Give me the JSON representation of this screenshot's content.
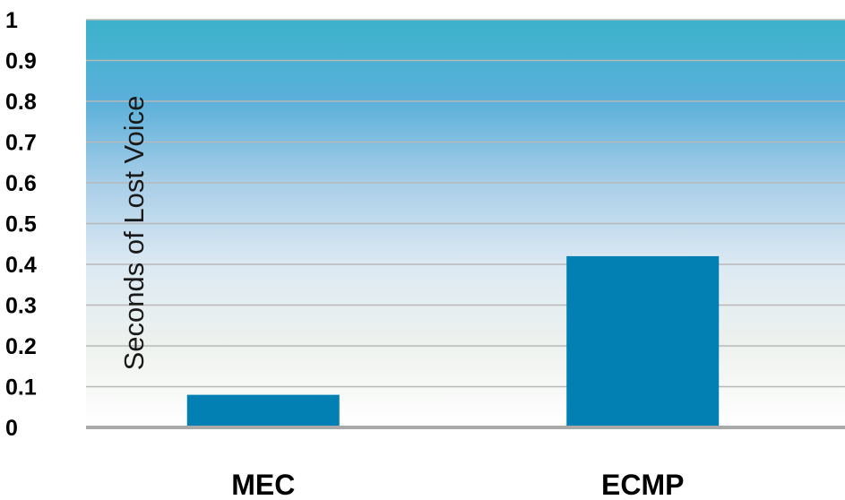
{
  "chart_data": {
    "type": "bar",
    "categories": [
      "MEC",
      "ECMP"
    ],
    "values": [
      0.08,
      0.42
    ],
    "title": "",
    "xlabel": "",
    "ylabel": "Seconds of Lost Voice",
    "ylim": [
      0,
      1
    ],
    "yticks": [
      0,
      0.1,
      0.2,
      0.3,
      0.4,
      0.5,
      0.6,
      0.7,
      0.8,
      0.9,
      1
    ],
    "ytick_labels": [
      "0",
      "0.1",
      "0.2",
      "0.3",
      "0.4",
      "0.5",
      "0.6",
      "0.7",
      "0.8",
      "0.9",
      "1"
    ],
    "grid": true,
    "legend": "none",
    "bar_color": "#0280b4",
    "background_gradient": [
      "#3bb2cc",
      "#5bb0da",
      "#a8cee8",
      "#dce9f3",
      "#eef2ee",
      "#ffffff"
    ],
    "gridline_color": "#b8b8b8",
    "baseline_color": "#a9a9a9"
  }
}
